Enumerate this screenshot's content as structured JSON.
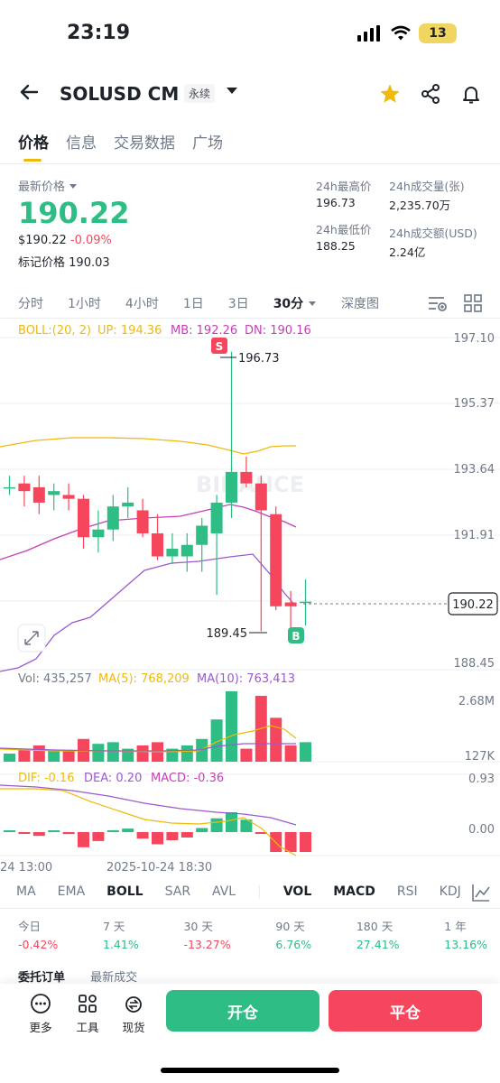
{
  "status_bar": {
    "time": "23:19",
    "battery": "13"
  },
  "header": {
    "symbol": "SOLUSD CM",
    "contract_type": "永续"
  },
  "tabs": [
    "价格",
    "信息",
    "交易数据",
    "广场"
  ],
  "price": {
    "latest_label": "最新价格",
    "last_price": "190.22",
    "usd_price": "$190.22",
    "change_pct": "-0.09%",
    "mark_label": "标记价格",
    "mark_price": "190.03"
  },
  "stats": {
    "high_label": "24h最高价",
    "high": "196.73",
    "low_label": "24h最低价",
    "low": "188.25",
    "vol_label": "24h成交量(张)",
    "vol": "2,235.70万",
    "turnover_label": "24h成交额(USD)",
    "turnover": "2.24亿"
  },
  "intervals": [
    "分时",
    "1小时",
    "4小时",
    "1日",
    "3日",
    "30分",
    "深度图"
  ],
  "selected_interval": "30分",
  "chart": {
    "boll_label": "BOLL:(20, 2)",
    "up_label": "UP: 194.36",
    "mb_label": "MB: 192.26",
    "dn_label": "DN: 190.16",
    "price_axis": [
      "197.10",
      "195.37",
      "193.64",
      "191.91",
      "190.22",
      "188.45"
    ],
    "current_price": "190.22",
    "high_marker": "196.73",
    "low_marker": "189.45",
    "sell_marker": "S",
    "buy_marker": "B",
    "watermark": "BINANCE",
    "vol_label": "Vol: 435,257",
    "ma5_label": "MA(5): 768,209",
    "ma10_label": "MA(10): 763,413",
    "vol_axis": [
      "2.68M",
      "127K"
    ],
    "dif_label": "DIF: -0.16",
    "dea_label": "DEA: 0.20",
    "macd_label": "MACD: -0.36",
    "macd_axis": [
      "0.93",
      "0.00"
    ],
    "time_axis": [
      "24 13:00",
      "2025-10-24 18:30"
    ]
  },
  "indicators": [
    "MA",
    "EMA",
    "BOLL",
    "SAR",
    "AVL",
    "VOL",
    "MACD",
    "RSI",
    "KDJ"
  ],
  "indicators_on": [
    "BOLL",
    "VOL",
    "MACD"
  ],
  "performance": [
    {
      "period": "今日",
      "value": "-0.42%"
    },
    {
      "period": "7 天",
      "value": "1.41%"
    },
    {
      "period": "30 天",
      "value": "-13.27%"
    },
    {
      "period": "90 天",
      "value": "6.76%"
    },
    {
      "period": "180 天",
      "value": "27.41%"
    },
    {
      "period": "1 年",
      "value": "13.16%"
    }
  ],
  "peek_tabs": [
    "委托订单",
    "最新成交"
  ],
  "bottom": {
    "more": "更多",
    "tools": "工具",
    "spot": "现货",
    "open": "开仓",
    "close": "平仓"
  },
  "chart_data": {
    "type": "candlestick",
    "candles": [
      {
        "o": 193.2,
        "h": 193.5,
        "l": 193.0,
        "c": 193.2
      },
      {
        "o": 193.3,
        "h": 193.5,
        "l": 192.7,
        "c": 193.1
      },
      {
        "o": 193.2,
        "h": 193.5,
        "l": 192.5,
        "c": 192.8
      },
      {
        "o": 193.0,
        "h": 193.3,
        "l": 192.6,
        "c": 193.1
      },
      {
        "o": 193.0,
        "h": 193.3,
        "l": 192.6,
        "c": 192.9
      },
      {
        "o": 192.9,
        "h": 193.0,
        "l": 191.6,
        "c": 191.9
      },
      {
        "o": 191.9,
        "h": 192.6,
        "l": 191.5,
        "c": 192.1
      },
      {
        "o": 192.1,
        "h": 193.0,
        "l": 191.8,
        "c": 192.7
      },
      {
        "o": 192.7,
        "h": 193.2,
        "l": 192.4,
        "c": 192.8
      },
      {
        "o": 192.6,
        "h": 192.9,
        "l": 191.9,
        "c": 192.0
      },
      {
        "o": 192.0,
        "h": 192.5,
        "l": 191.3,
        "c": 191.4
      },
      {
        "o": 191.4,
        "h": 192.0,
        "l": 191.2,
        "c": 191.6
      },
      {
        "o": 191.4,
        "h": 192.0,
        "l": 191.0,
        "c": 191.7
      },
      {
        "o": 191.7,
        "h": 192.4,
        "l": 191.0,
        "c": 192.2
      },
      {
        "o": 192.0,
        "h": 193.0,
        "l": 190.4,
        "c": 192.8
      },
      {
        "o": 192.8,
        "h": 196.73,
        "l": 192.4,
        "c": 193.6
      },
      {
        "o": 193.6,
        "h": 194.0,
        "l": 193.2,
        "c": 193.3
      },
      {
        "o": 193.3,
        "h": 193.5,
        "l": 189.45,
        "c": 192.6
      },
      {
        "o": 192.5,
        "h": 192.7,
        "l": 190.0,
        "c": 190.1
      },
      {
        "o": 190.2,
        "h": 190.5,
        "l": 189.5,
        "c": 190.1
      },
      {
        "o": 190.2,
        "h": 190.8,
        "l": 189.6,
        "c": 190.22
      }
    ],
    "boll": {
      "up_last": 194.36,
      "mb_last": 192.26,
      "dn_last": 190.16
    },
    "volume_axis": [
      "127K",
      "2.68M"
    ],
    "macd": {
      "dif": -0.16,
      "dea": 0.2,
      "macd": -0.36
    },
    "ylim": [
      188.45,
      197.1
    ],
    "grid": true
  }
}
